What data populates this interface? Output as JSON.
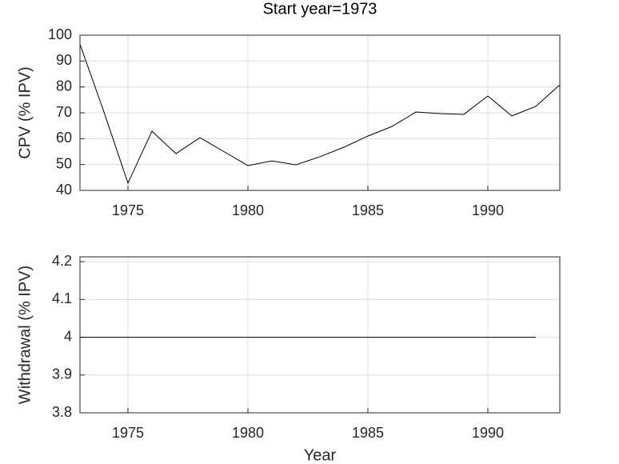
{
  "chart_data": [
    {
      "type": "line",
      "title": "Start year=1973",
      "ylabel": "CPV (% IPV)",
      "x": [
        1973,
        1974,
        1975,
        1976,
        1977,
        1978,
        1979,
        1980,
        1981,
        1982,
        1983,
        1984,
        1985,
        1986,
        1987,
        1988,
        1989,
        1990,
        1991,
        1992,
        1993
      ],
      "series": [
        {
          "name": "CPV",
          "color": "#000000",
          "values": [
            96.5,
            70.3,
            42.8,
            62.9,
            54.2,
            60.4,
            55,
            49.6,
            51.4,
            49.9,
            53,
            56.7,
            61,
            64.7,
            70.3,
            69.7,
            69.4,
            76.5,
            68.8,
            72.5,
            80.8
          ]
        }
      ],
      "xlim": [
        1973,
        1993
      ],
      "xticks": [
        1975,
        1980,
        1985,
        1990
      ],
      "ylim": [
        40,
        100
      ],
      "yticks": [
        40,
        50,
        60,
        70,
        80,
        90,
        100
      ],
      "grid": true
    },
    {
      "type": "line",
      "xlabel": "Year",
      "ylabel": "Withdrawal (% IPV)",
      "x": [
        1973,
        1974,
        1975,
        1976,
        1977,
        1978,
        1979,
        1980,
        1981,
        1982,
        1983,
        1984,
        1985,
        1986,
        1987,
        1988,
        1989,
        1990,
        1991,
        1992
      ],
      "series": [
        {
          "name": "Withdrawal",
          "color": "#000000",
          "values": [
            4,
            4,
            4,
            4,
            4,
            4,
            4,
            4,
            4,
            4,
            4,
            4,
            4,
            4,
            4,
            4,
            4,
            4,
            4,
            4
          ]
        }
      ],
      "xlim": [
        1973,
        1993
      ],
      "xticks": [
        1975,
        1980,
        1985,
        1990
      ],
      "ylim": [
        3.8,
        4.213
      ],
      "yticks": [
        3.8,
        3.9,
        4,
        4.1,
        4.2
      ],
      "grid": true
    }
  ]
}
